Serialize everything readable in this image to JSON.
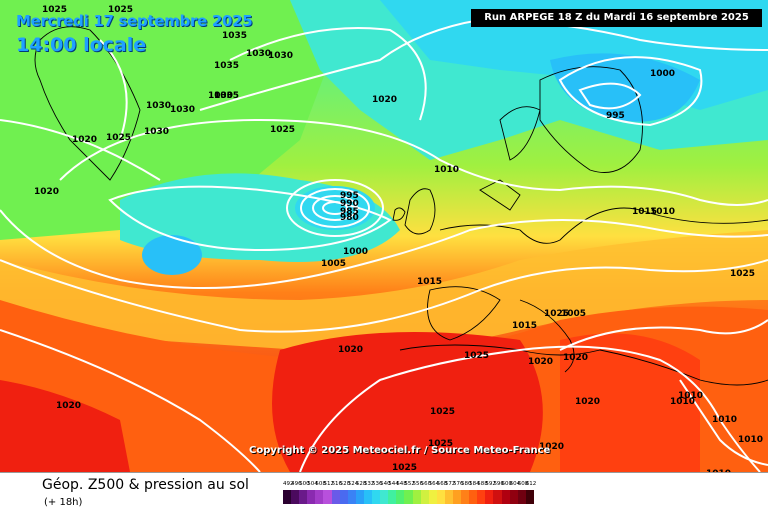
{
  "header": {
    "date_label": "Mercredi 17 septembre 2025",
    "time_label": "14:00 locale",
    "run_label": "Run ARPEGE 18 Z du Mardi 16 septembre 2025"
  },
  "map": {
    "copyright": "Copyright © 2025 Meteociel.fr / Source Meteo-France",
    "isobar_color": "#ffffff",
    "coast_color": "#000000"
  },
  "isobar_labels": [
    "1025",
    "1025",
    "1035",
    "1035",
    "1030",
    "1030",
    "1035",
    "1030",
    "1030",
    "1030",
    "1030",
    "1025",
    "1020",
    "1020",
    "1025",
    "1020",
    "1010",
    "1000",
    "995",
    "995",
    "990",
    "985",
    "980",
    "1000",
    "1005",
    "1015",
    "1015",
    "1010",
    "1025",
    "1005",
    "1015",
    "1020",
    "1025",
    "1020",
    "1020",
    "1020",
    "1025",
    "1025",
    "1025",
    "1020",
    "1010",
    "1010",
    "1010",
    "1010",
    "1010",
    "1025",
    "1020"
  ],
  "footer": {
    "title": "Géop. Z500 & pression au sol",
    "subtitle": "(+ 18h)",
    "scale_values": [
      "492",
      "496",
      "500",
      "504",
      "508",
      "512",
      "516",
      "520",
      "524",
      "528",
      "532",
      "536",
      "540",
      "544",
      "548",
      "552",
      "556",
      "560",
      "564",
      "568",
      "572",
      "576",
      "580",
      "584",
      "588",
      "592",
      "596",
      "600",
      "604",
      "608",
      "612"
    ],
    "scale_colors": [
      "#2a0030",
      "#4b0a5e",
      "#6a1a8a",
      "#8a2ab0",
      "#a23cc8",
      "#b850dc",
      "#6a5ae8",
      "#4a6af0",
      "#3a82f5",
      "#2aa0f8",
      "#28c0f8",
      "#30d8f0",
      "#40e8d0",
      "#40f0a0",
      "#50f070",
      "#70f050",
      "#a0f040",
      "#d0f040",
      "#f0f040",
      "#ffe040",
      "#ffc030",
      "#ffa020",
      "#ff8018",
      "#ff6010",
      "#ff4010",
      "#f02010",
      "#d01010",
      "#b00010",
      "#900010",
      "#700010",
      "#400008"
    ]
  }
}
